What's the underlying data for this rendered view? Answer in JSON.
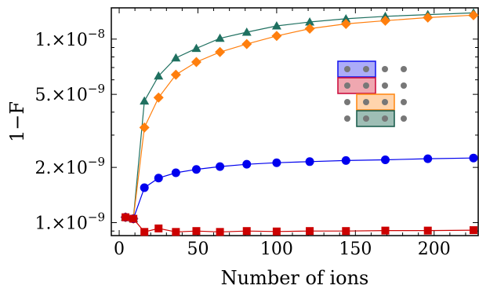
{
  "chart_data": {
    "type": "line",
    "xlabel": "Number of ions",
    "ylabel": "1−F",
    "xlim": [
      -5,
      228
    ],
    "ylim": [
      8.5e-10,
      1.48e-08
    ],
    "yscale": "log",
    "grid": false,
    "x_ticks": [
      0,
      50,
      100,
      150,
      200
    ],
    "x_tick_labels": [
      "0",
      "50",
      "100",
      "150",
      "200"
    ],
    "y_ticks": [
      {
        "value": 1e-09,
        "label": "1.×10",
        "exp": "−9"
      },
      {
        "value": 2e-09,
        "label": "2.×10",
        "exp": "−9"
      },
      {
        "value": 5e-09,
        "label": "5.×10",
        "exp": "−9"
      },
      {
        "value": 1e-08,
        "label": "1.×10",
        "exp": "−8"
      }
    ],
    "series": [
      {
        "color": "#1f7060",
        "marker": "triangle",
        "x": [
          4,
          9,
          16,
          25,
          36,
          49,
          64,
          81,
          100,
          121,
          144,
          169,
          196,
          225
        ],
        "y": [
          1.07e-09,
          1.05e-09,
          4.6e-09,
          6.3e-09,
          7.9e-09,
          8.9e-09,
          1.01e-08,
          1.09e-08,
          1.18e-08,
          1.24e-08,
          1.29e-08,
          1.33e-08,
          1.36e-08,
          1.39e-08
        ]
      },
      {
        "color": "#ff7f0e",
        "marker": "diamond",
        "x": [
          4,
          9,
          16,
          25,
          36,
          49,
          64,
          81,
          100,
          121,
          144,
          169,
          196,
          225
        ],
        "y": [
          1.07e-09,
          1.05e-09,
          3.3e-09,
          4.8e-09,
          6.4e-09,
          7.5e-09,
          8.5e-09,
          9.4e-09,
          1.04e-08,
          1.14e-08,
          1.21e-08,
          1.26e-08,
          1.31e-08,
          1.35e-08
        ]
      },
      {
        "color": "#0000ee",
        "marker": "circle",
        "x": [
          4,
          9,
          16,
          25,
          36,
          49,
          64,
          81,
          100,
          121,
          144,
          169,
          196,
          225
        ],
        "y": [
          1.07e-09,
          1.05e-09,
          1.55e-09,
          1.75e-09,
          1.87e-09,
          1.95e-09,
          2.02e-09,
          2.08e-09,
          2.12e-09,
          2.15e-09,
          2.18e-09,
          2.2e-09,
          2.23e-09,
          2.25e-09
        ]
      },
      {
        "color": "#cc0000",
        "marker": "square",
        "x": [
          4,
          9,
          16,
          25,
          36,
          49,
          64,
          81,
          100,
          121,
          144,
          169,
          196,
          225
        ],
        "y": [
          1.07e-09,
          1.05e-09,
          8.9e-10,
          9.3e-10,
          8.9e-10,
          9e-10,
          8.9e-10,
          9e-10,
          8.95e-10,
          9e-10,
          9e-10,
          9.05e-10,
          9.05e-10,
          9.1e-10
        ]
      }
    ],
    "inset": {
      "rows": 4,
      "cols": 4,
      "dot_color": "#777777",
      "boxes": [
        {
          "row": 0,
          "col_start": 0,
          "col_end": 1,
          "color": "#1a1aee",
          "fill": "rgba(70,70,240,0.45)"
        },
        {
          "row": 1,
          "col_start": 0,
          "col_end": 1,
          "color": "#cc1040",
          "fill": "rgba(220,60,80,0.45)"
        },
        {
          "row": 2,
          "col_start": 1,
          "col_end": 2,
          "color": "#ff8c1a",
          "fill": "rgba(255,160,70,0.45)"
        },
        {
          "row": 3,
          "col_start": 1,
          "col_end": 2,
          "color": "#1f6050",
          "fill": "rgba(40,110,90,0.45)"
        }
      ]
    }
  }
}
